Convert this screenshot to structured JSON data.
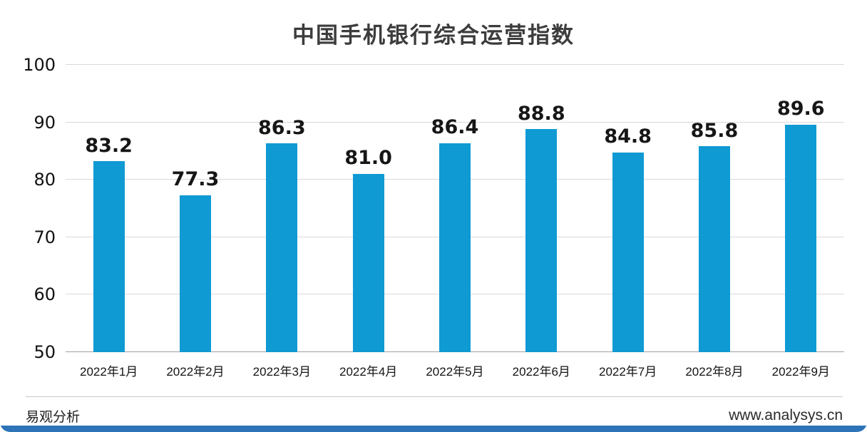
{
  "chart_data": {
    "type": "bar",
    "title": "中国手机银行综合运营指数",
    "categories": [
      "2022年1月",
      "2022年2月",
      "2022年3月",
      "2022年4月",
      "2022年5月",
      "2022年6月",
      "2022年7月",
      "2022年8月",
      "2022年9月"
    ],
    "values": [
      83.2,
      77.3,
      86.3,
      81.0,
      86.4,
      88.8,
      84.8,
      85.8,
      89.6
    ],
    "value_labels": [
      "83.2",
      "77.3",
      "86.3",
      "81.0",
      "86.4",
      "88.8",
      "84.8",
      "85.8",
      "89.6"
    ],
    "ylim": [
      50,
      100
    ],
    "yticks": [
      50,
      60,
      70,
      80,
      90,
      100
    ],
    "grid": true,
    "legend": "none",
    "bar_color": "#0f9ad3",
    "accent_color": "#2c73b8"
  },
  "footer": {
    "brand": "易观分析",
    "website": "www.analysys.cn"
  }
}
